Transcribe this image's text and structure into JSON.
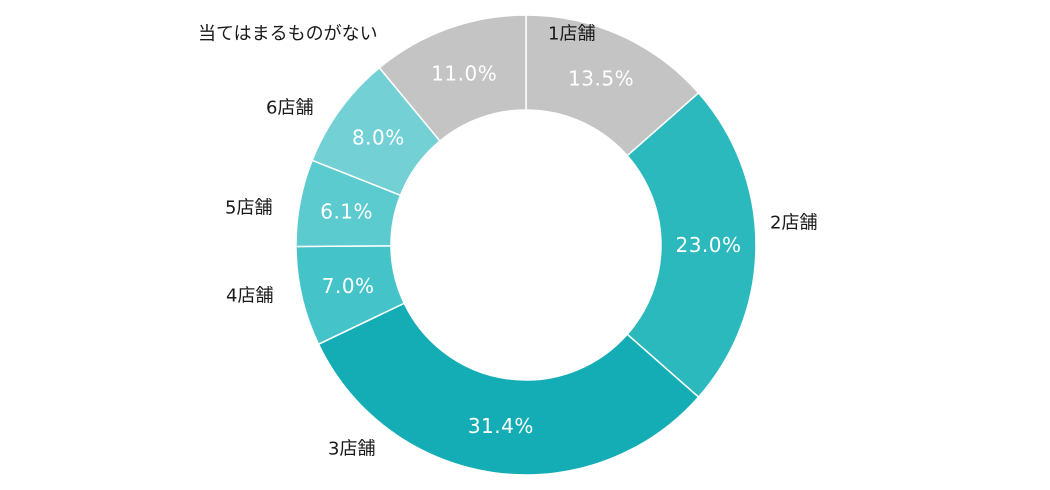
{
  "chart_data": {
    "type": "pie",
    "variant": "donut",
    "start_angle_deg": 0,
    "direction": "clockwise",
    "categories": [
      "1店舗",
      "2店舗",
      "3店舗",
      "4店舗",
      "5店舗",
      "6店舗",
      "当てはまるものがない"
    ],
    "values": [
      13.5,
      23.0,
      31.4,
      7.0,
      6.1,
      8.0,
      11.0
    ],
    "value_labels": [
      "13.5%",
      "23.0%",
      "31.4%",
      "7.0%",
      "6.1%",
      "8.0%",
      "11.0%"
    ],
    "colors": [
      "#c4c4c4",
      "#2bb9bd",
      "#14adb5",
      "#44c3c8",
      "#5ccbcf",
      "#73d1d5",
      "#c4c4c4"
    ],
    "title": ""
  }
}
